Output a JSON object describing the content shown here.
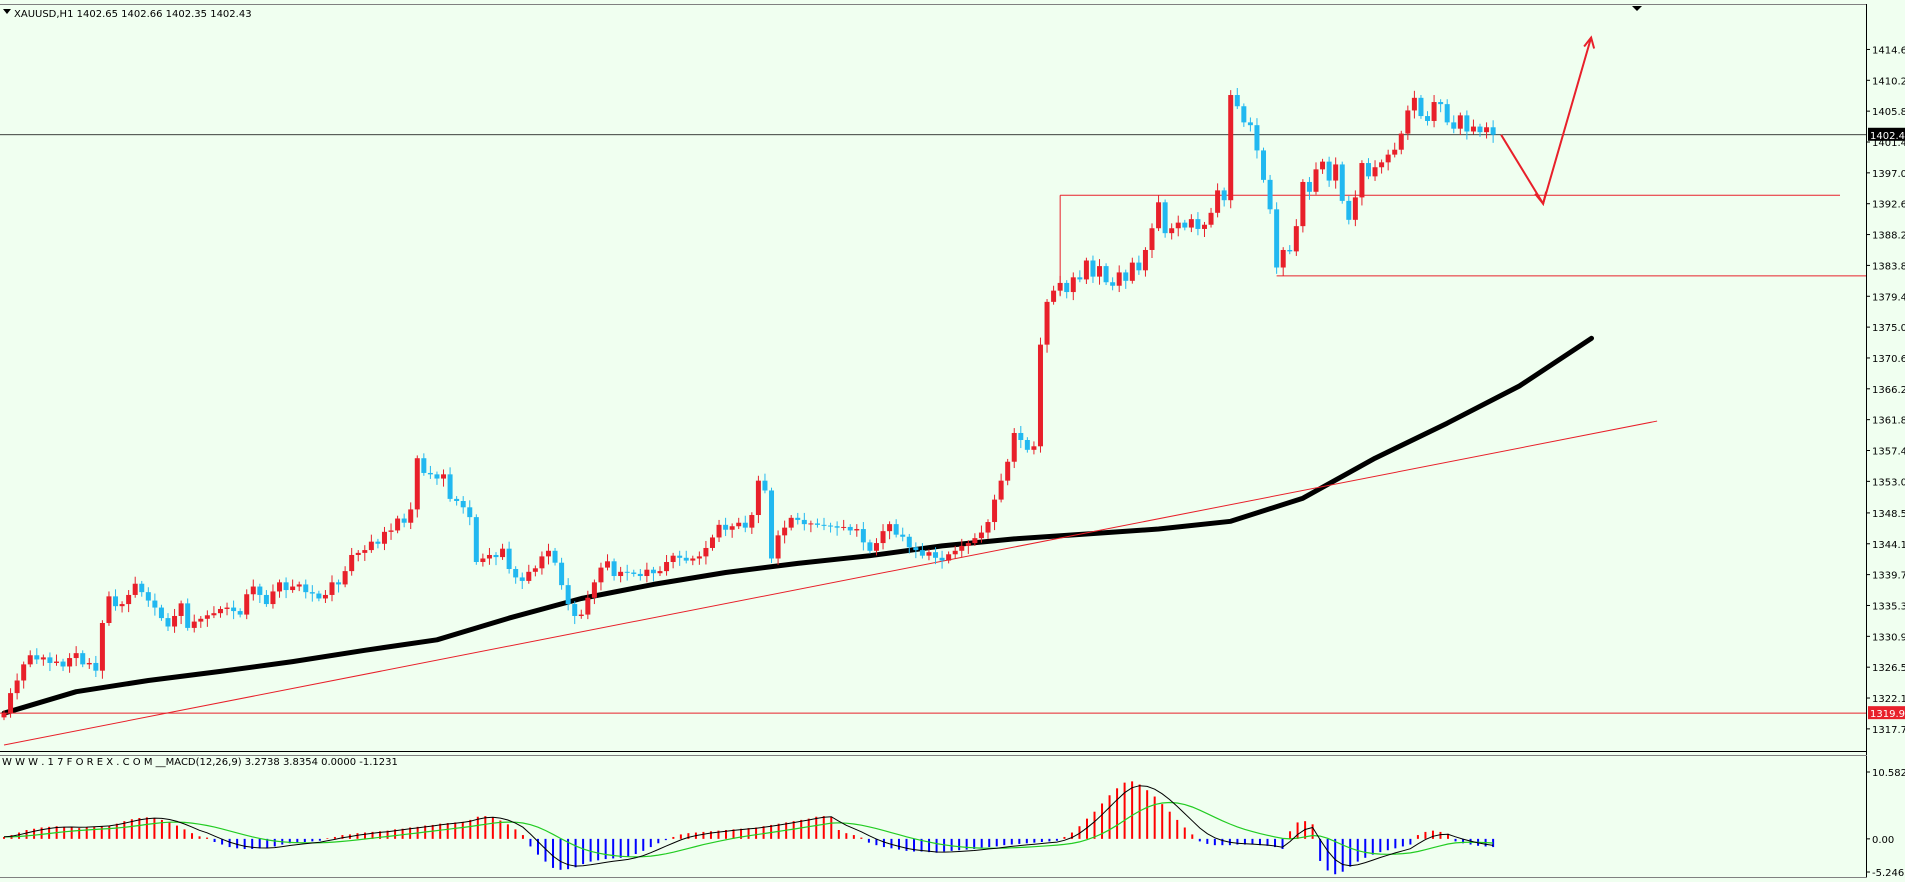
{
  "header": {
    "symbol_line": "XAUUSD,H1  1402.65 1402.66 1402.35 1402.43"
  },
  "macd_header": {
    "text": "W W W . 1 7 F O R E X . C O M __MACD(12,26,9) 3.2738 3.8354 0.0000 -1.1231"
  },
  "price_axis": {
    "ticks": [
      "1414.60",
      "1410.20",
      "1405.80",
      "1401.40",
      "1397.00",
      "1392.60",
      "1388.20",
      "1383.80",
      "1379.40",
      "1375.00",
      "1370.60",
      "1366.20",
      "1361.80",
      "1357.40",
      "1353.00",
      "1348.50",
      "1344.10",
      "1339.70",
      "1335.30",
      "1330.90",
      "1326.50",
      "1322.10",
      "1317.70"
    ],
    "current_price_tag": "1402.43",
    "support_price_tag": "1319.94"
  },
  "macd_axis": {
    "ticks": [
      "10.5829",
      "0.00",
      "-5.2463"
    ]
  },
  "colors": {
    "background": "#F0FFF0",
    "bull": "#E8202A",
    "bear": "#21B8F0",
    "ma": "#000000",
    "trend": "#E8202A",
    "macd_signal": "#22CC22",
    "macd_line": "#000000",
    "hist_pos": "#FF0000",
    "hist_neg": "#0000FF"
  },
  "chart_data": {
    "type": "candlestick",
    "symbol": "XAUUSD",
    "timeframe": "H1",
    "price_range": [
      1315.4,
      1418.8
    ],
    "last_bar": {
      "open": 1402.65,
      "high": 1402.66,
      "low": 1402.35,
      "close": 1402.43
    },
    "closes": [
      1319.94,
      1322.8,
      1324.6,
      1326.9,
      1328.2,
      1327.6,
      1327.9,
      1327.1,
      1327.3,
      1326.6,
      1327.8,
      1328.5,
      1326.9,
      1327.1,
      1326.0,
      1332.8,
      1336.6,
      1335.2,
      1335.5,
      1336.8,
      1338.4,
      1337.2,
      1336.0,
      1335.0,
      1333.5,
      1332.3,
      1333.8,
      1335.6,
      1332.1,
      1333.0,
      1333.4,
      1333.9,
      1334.2,
      1334.8,
      1335.0,
      1334.5,
      1334.0,
      1336.9,
      1338.0,
      1336.8,
      1335.5,
      1337.3,
      1338.6,
      1337.5,
      1338.0,
      1338.3,
      1337.2,
      1337.0,
      1336.3,
      1336.8,
      1338.6,
      1338.3,
      1340.2,
      1342.5,
      1342.8,
      1343.2,
      1344.4,
      1344.1,
      1345.8,
      1346.0,
      1347.7,
      1347.1,
      1349.0,
      1356.3,
      1354.2,
      1354.0,
      1353.4,
      1354.0,
      1350.5,
      1350.2,
      1349.3,
      1347.9,
      1341.5,
      1342.0,
      1342.5,
      1342.2,
      1343.4,
      1340.5,
      1339.3,
      1338.8,
      1340.1,
      1340.6,
      1342.3,
      1343.1,
      1341.4,
      1338.2,
      1335.5,
      1333.8,
      1334.0,
      1336.4,
      1338.6,
      1340.7,
      1341.6,
      1339.5,
      1340.1,
      1340.0,
      1339.8,
      1339.5,
      1340.4,
      1339.9,
      1340.2,
      1341.5,
      1342.4,
      1342.1,
      1341.7,
      1342.0,
      1342.3,
      1343.5,
      1345.0,
      1346.8,
      1346.1,
      1346.6,
      1347.1,
      1346.4,
      1348.2,
      1353.1,
      1351.7,
      1342.0,
      1345.3,
      1346.4,
      1347.8,
      1347.5,
      1346.9,
      1347.0,
      1346.8,
      1346.7,
      1346.6,
      1346.4,
      1346.5,
      1346.0,
      1346.2,
      1344.3,
      1343.1,
      1344.2,
      1345.9,
      1346.9,
      1345.4,
      1345.1,
      1343.6,
      1343.2,
      1342.4,
      1342.9,
      1342.1,
      1341.7,
      1342.6,
      1343.1,
      1343.8,
      1344.2,
      1344.9,
      1345.7,
      1347.2,
      1350.4,
      1353.1,
      1355.8,
      1359.9,
      1358.9,
      1357.5,
      1358.0,
      1372.5,
      1378.6,
      1380.2,
      1381.3,
      1380.0,
      1382.1,
      1381.8,
      1384.5,
      1382.2,
      1383.7,
      1381.4,
      1380.9,
      1382.8,
      1381.6,
      1384.2,
      1383.1,
      1386.0,
      1389.1,
      1392.8,
      1388.4,
      1389.1,
      1389.9,
      1389.2,
      1390.4,
      1389.0,
      1389.6,
      1391.3,
      1394.5,
      1393.1,
      1408.1,
      1406.5,
      1404.2,
      1403.8,
      1400.2,
      1396.0,
      1391.8,
      1383.5,
      1386.0,
      1385.8,
      1389.4,
      1395.7,
      1394.3,
      1397.5,
      1398.6,
      1395.9,
      1398.2,
      1393.0,
      1390.3,
      1393.5,
      1398.4,
      1396.5,
      1397.8,
      1398.5,
      1399.6,
      1400.3,
      1402.6,
      1405.9,
      1407.7,
      1405.1,
      1404.4,
      1407.1,
      1406.8,
      1404.2,
      1403.3,
      1405.2,
      1402.9,
      1403.6,
      1402.8,
      1403.5,
      1402.43
    ],
    "moving_average": {
      "values": [
        1319.94,
        1323.0,
        1324.6,
        1325.9,
        1327.3,
        1328.9,
        1330.4,
        1333.5,
        1336.3,
        1338.3,
        1340.0,
        1341.3,
        1342.4,
        1343.8,
        1344.8,
        1345.5,
        1346.2,
        1347.3,
        1350.6,
        1356.3,
        1361.3,
        1366.6,
        1373.4
      ]
    },
    "trendline": {
      "from": [
        0,
        1315.4
      ],
      "to": [
        252,
        1361.6
      ]
    },
    "support_level": 1319.94,
    "resistance_box": {
      "level": 1393.8,
      "from_bar": 161
    },
    "lower_level": {
      "value": 1382.3,
      "from_bar": 194
    },
    "forecast_path": [
      1402.43,
      1392.6,
      1416.3
    ],
    "macd": {
      "params": "12,26,9",
      "values": {
        "macd": 3.2738,
        "signal": 3.8354,
        "hist_a": 0.0,
        "hist_b": -1.1231
      },
      "range": [
        -5.2463,
        10.5829
      ],
      "histogram": [
        0.3,
        0.6,
        1.0,
        1.4,
        1.6,
        1.8,
        1.9,
        2.0,
        1.9,
        1.8,
        1.7,
        1.8,
        1.9,
        2.0,
        2.1,
        2.4,
        2.8,
        3.1,
        3.3,
        3.4,
        3.3,
        3.0,
        2.6,
        2.1,
        1.5,
        0.9,
        0.4,
        0.2,
        -0.5,
        -0.9,
        -1.3,
        -1.5,
        -1.6,
        -1.6,
        -1.5,
        -1.4,
        -1.2,
        -0.9,
        -0.7,
        -0.6,
        -0.5,
        -0.4,
        -0.3,
        0.1,
        0.3,
        0.6,
        0.7,
        0.9,
        1.0,
        1.1,
        1.2,
        1.3,
        1.5,
        1.6,
        1.8,
        1.9,
        2.1,
        2.2,
        2.4,
        2.5,
        2.6,
        2.7,
        3.0,
        3.5,
        3.6,
        3.4,
        2.9,
        2.3,
        1.5,
        0.6,
        -1.2,
        -2.5,
        -3.6,
        -4.6,
        -4.9,
        -4.8,
        -4.5,
        -4.0,
        -3.6,
        -3.4,
        -3.2,
        -3.1,
        -3.0,
        -2.8,
        -2.4,
        -1.9,
        -1.3,
        -0.7,
        -0.2,
        0.3,
        0.7,
        0.9,
        1.0,
        1.1,
        1.2,
        1.3,
        1.4,
        1.5,
        1.6,
        1.7,
        1.8,
        2.0,
        2.2,
        2.4,
        2.6,
        2.8,
        3.0,
        3.2,
        3.5,
        3.6,
        3.5,
        1.4,
        0.9,
        0.6,
        0.2,
        -0.6,
        -1.0,
        -1.3,
        -1.5,
        -1.7,
        -1.9,
        -2.0,
        -2.0,
        -2.1,
        -2.2,
        -2.0,
        -1.9,
        -1.8,
        -1.7,
        -1.6,
        -1.4,
        -1.3,
        -1.2,
        -1.0,
        -0.9,
        -0.8,
        -0.7,
        -0.6,
        -0.5,
        -0.4,
        -0.3,
        0.3,
        1.0,
        2.0,
        3.2,
        4.3,
        5.6,
        6.9,
        8.0,
        8.9,
        9.1,
        8.6,
        7.7,
        6.7,
        5.5,
        4.3,
        3.0,
        1.8,
        0.7,
        -0.4,
        -0.8,
        -1.0,
        -1.0,
        -1.0,
        -0.9,
        -0.9,
        -0.9,
        -1.0,
        -1.1,
        -1.3,
        -1.6,
        1.2,
        2.6,
        2.8,
        2.3,
        -3.5,
        -5.0,
        -5.6,
        -5.2,
        -4.4,
        -3.6,
        -3.0,
        -2.5,
        -2.1,
        -1.8,
        -1.5,
        -1.2,
        -0.9,
        0.6,
        1.1,
        1.3,
        1.1,
        0.8,
        -0.4,
        -0.7,
        -0.9,
        -1.1,
        -1.2,
        -1.3
      ]
    }
  }
}
